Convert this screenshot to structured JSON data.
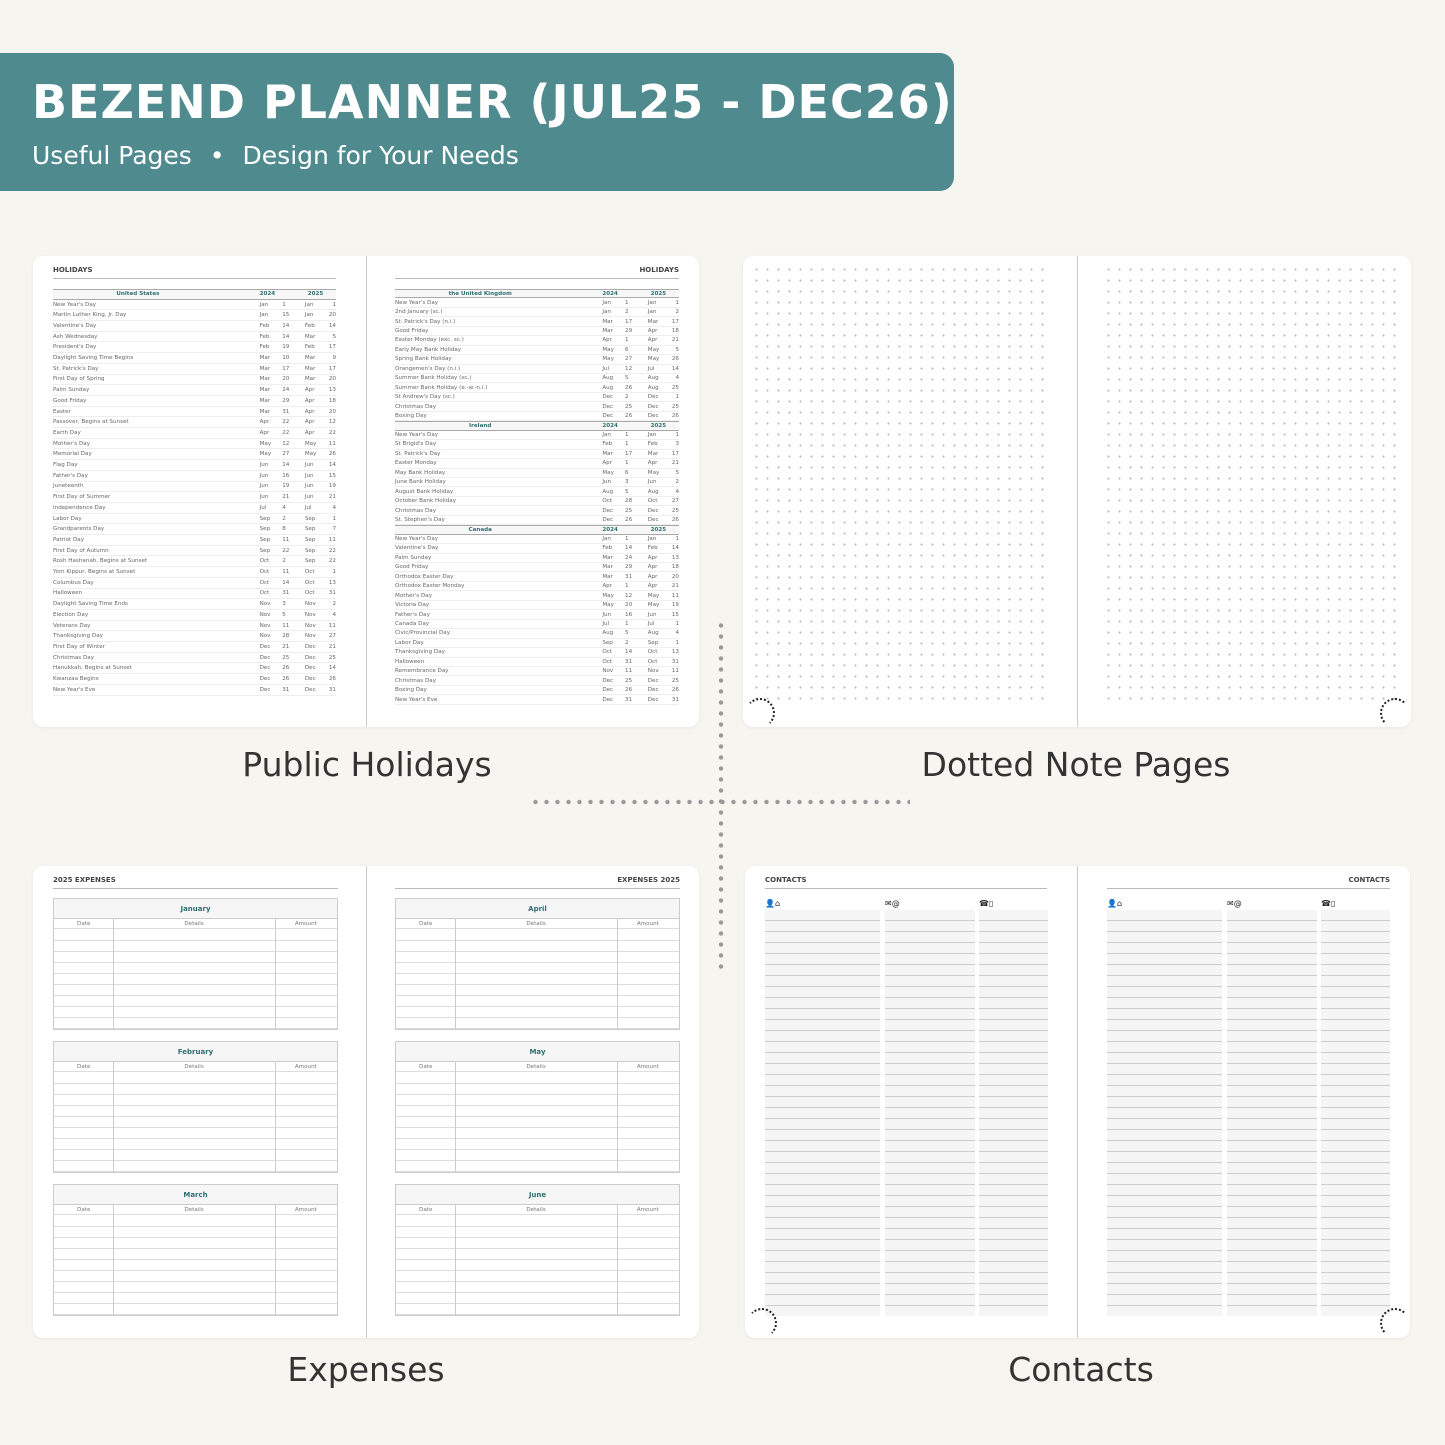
{
  "banner": {
    "title": "BEZEND PLANNER (JUL25 - DEC26)",
    "subtitle_left": "Useful Pages",
    "bullet": "•",
    "subtitle_right": "Design for Your Needs",
    "color": "#4f8a8e"
  },
  "captions": {
    "holidays": "Public Holidays",
    "dotted": "Dotted Note Pages",
    "expenses": "Expenses",
    "contacts": "Contacts"
  },
  "holidays": {
    "title": "HOLIDAYS",
    "years": [
      "2024",
      "2025"
    ],
    "left": [
      {
        "country": "United States",
        "rows": [
          [
            "New Year's Day",
            "Jan",
            "1",
            "Jan",
            "1"
          ],
          [
            "Martin Luther King, Jr. Day",
            "Jan",
            "15",
            "Jan",
            "20"
          ],
          [
            "Valentine's Day",
            "Feb",
            "14",
            "Feb",
            "14"
          ],
          [
            "Ash Wednesday",
            "Feb",
            "14",
            "Mar",
            "5"
          ],
          [
            "President's Day",
            "Feb",
            "19",
            "Feb",
            "17"
          ],
          [
            "Daylight Saving Time Begins",
            "Mar",
            "10",
            "Mar",
            "9"
          ],
          [
            "St. Patrick's Day",
            "Mar",
            "17",
            "Mar",
            "17"
          ],
          [
            "First Day of Spring",
            "Mar",
            "20",
            "Mar",
            "20"
          ],
          [
            "Palm Sunday",
            "Mar",
            "24",
            "Apr",
            "13"
          ],
          [
            "Good Friday",
            "Mar",
            "29",
            "Apr",
            "18"
          ],
          [
            "Easter",
            "Mar",
            "31",
            "Apr",
            "20"
          ],
          [
            "Passover, Begins at Sunset",
            "Apr",
            "22",
            "Apr",
            "12"
          ],
          [
            "Earth Day",
            "Apr",
            "22",
            "Apr",
            "22"
          ],
          [
            "Mother's Day",
            "May",
            "12",
            "May",
            "11"
          ],
          [
            "Memorial Day",
            "May",
            "27",
            "May",
            "26"
          ],
          [
            "Flag Day",
            "Jun",
            "14",
            "Jun",
            "14"
          ],
          [
            "Father's Day",
            "Jun",
            "16",
            "Jun",
            "15"
          ],
          [
            "Juneteenth",
            "Jun",
            "19",
            "Jun",
            "19"
          ],
          [
            "First Day of Summer",
            "Jun",
            "21",
            "Jun",
            "21"
          ],
          [
            "Independence Day",
            "Jul",
            "4",
            "Jul",
            "4"
          ],
          [
            "Labor Day",
            "Sep",
            "2",
            "Sep",
            "1"
          ],
          [
            "Grandparents Day",
            "Sep",
            "8",
            "Sep",
            "7"
          ],
          [
            "Patriot Day",
            "Sep",
            "11",
            "Sep",
            "11"
          ],
          [
            "First Day of Autumn",
            "Sep",
            "22",
            "Sep",
            "22"
          ],
          [
            "Rosh Hashanah, Begins at Sunset",
            "Oct",
            "2",
            "Sep",
            "22"
          ],
          [
            "Yom Kippur, Begins at Sunset",
            "Oct",
            "11",
            "Oct",
            "1"
          ],
          [
            "Columbus Day",
            "Oct",
            "14",
            "Oct",
            "13"
          ],
          [
            "Halloween",
            "Oct",
            "31",
            "Oct",
            "31"
          ],
          [
            "Daylight Saving Time Ends",
            "Nov",
            "3",
            "Nov",
            "2"
          ],
          [
            "Election Day",
            "Nov",
            "5",
            "Nov",
            "4"
          ],
          [
            "Veterans Day",
            "Nov",
            "11",
            "Nov",
            "11"
          ],
          [
            "Thanksgiving Day",
            "Nov",
            "28",
            "Nov",
            "27"
          ],
          [
            "First Day of Winter",
            "Dec",
            "21",
            "Dec",
            "21"
          ],
          [
            "Christmas Day",
            "Dec",
            "25",
            "Dec",
            "25"
          ],
          [
            "Hanukkah, Begins at Sunset",
            "Dec",
            "26",
            "Dec",
            "14"
          ],
          [
            "Kwanzaa Begins",
            "Dec",
            "26",
            "Dec",
            "26"
          ],
          [
            "New Year's Eve",
            "Dec",
            "31",
            "Dec",
            "31"
          ]
        ]
      }
    ],
    "right": [
      {
        "country": "the United Kingdom",
        "rows": [
          [
            "New Year's Day",
            "Jan",
            "1",
            "Jan",
            "1"
          ],
          [
            "2nd January (sc.)",
            "Jan",
            "2",
            "Jan",
            "2"
          ],
          [
            "St. Patrick's Day (n.i.)",
            "Mar",
            "17",
            "Mar",
            "17"
          ],
          [
            "Good Friday",
            "Mar",
            "29",
            "Apr",
            "18"
          ],
          [
            "Easter Monday (exc. sc.)",
            "Apr",
            "1",
            "Apr",
            "21"
          ],
          [
            "Early May Bank Holiday",
            "May",
            "6",
            "May",
            "5"
          ],
          [
            "Spring Bank Holiday",
            "May",
            "27",
            "May",
            "26"
          ],
          [
            "Orangemen's Day (n.i.)",
            "Jul",
            "12",
            "Jul",
            "14"
          ],
          [
            "Summer Bank Holiday (sc.)",
            "Aug",
            "5",
            "Aug",
            "4"
          ],
          [
            "Summer Bank Holiday (e.-w.-n.i.)",
            "Aug",
            "26",
            "Aug",
            "25"
          ],
          [
            "St Andrew's Day (sc.)",
            "Dec",
            "2",
            "Dec",
            "1"
          ],
          [
            "Christmas Day",
            "Dec",
            "25",
            "Dec",
            "25"
          ],
          [
            "Boxing Day",
            "Dec",
            "26",
            "Dec",
            "26"
          ]
        ]
      },
      {
        "country": "Ireland",
        "rows": [
          [
            "New Year's Day",
            "Jan",
            "1",
            "Jan",
            "1"
          ],
          [
            "St Brigid's Day",
            "Feb",
            "1",
            "Feb",
            "3"
          ],
          [
            "St. Patrick's Day",
            "Mar",
            "17",
            "Mar",
            "17"
          ],
          [
            "Easter Monday",
            "Apr",
            "1",
            "Apr",
            "21"
          ],
          [
            "May Bank Holiday",
            "May",
            "6",
            "May",
            "5"
          ],
          [
            "June Bank Holiday",
            "Jun",
            "3",
            "Jun",
            "2"
          ],
          [
            "August Bank Holiday",
            "Aug",
            "5",
            "Aug",
            "4"
          ],
          [
            "October Bank Holiday",
            "Oct",
            "28",
            "Oct",
            "27"
          ],
          [
            "Christmas Day",
            "Dec",
            "25",
            "Dec",
            "25"
          ],
          [
            "St. Stephen's Day",
            "Dec",
            "26",
            "Dec",
            "26"
          ]
        ]
      },
      {
        "country": "Canada",
        "rows": [
          [
            "New Year's Day",
            "Jan",
            "1",
            "Jan",
            "1"
          ],
          [
            "Valentine's Day",
            "Feb",
            "14",
            "Feb",
            "14"
          ],
          [
            "Palm Sunday",
            "Mar",
            "24",
            "Apr",
            "13"
          ],
          [
            "Good Friday",
            "Mar",
            "29",
            "Apr",
            "18"
          ],
          [
            "Orthodox Easter Day",
            "Mar",
            "31",
            "Apr",
            "20"
          ],
          [
            "Orthodox Easter Monday",
            "Apr",
            "1",
            "Apr",
            "21"
          ],
          [
            "Mother's Day",
            "May",
            "12",
            "May",
            "11"
          ],
          [
            "Victoria Day",
            "May",
            "20",
            "May",
            "19"
          ],
          [
            "Father's Day",
            "Jun",
            "16",
            "Jun",
            "15"
          ],
          [
            "Canada Day",
            "Jul",
            "1",
            "Jul",
            "1"
          ],
          [
            "Civic/Provincial Day",
            "Aug",
            "5",
            "Aug",
            "4"
          ],
          [
            "Labor Day",
            "Sep",
            "2",
            "Sep",
            "1"
          ],
          [
            "Thanksgiving Day",
            "Oct",
            "14",
            "Oct",
            "13"
          ],
          [
            "Halloween",
            "Oct",
            "31",
            "Oct",
            "31"
          ],
          [
            "Remembrance Day",
            "Nov",
            "11",
            "Nov",
            "11"
          ],
          [
            "Christmas Day",
            "Dec",
            "25",
            "Dec",
            "25"
          ],
          [
            "Boxing Day",
            "Dec",
            "26",
            "Dec",
            "26"
          ],
          [
            "New Year's Eve",
            "Dec",
            "31",
            "Dec",
            "31"
          ]
        ]
      }
    ]
  },
  "expenses": {
    "left_title": "2025 EXPENSES",
    "right_title": "EXPENSES 2025",
    "columns": [
      "Date",
      "Details",
      "Amount"
    ],
    "left_months": [
      "January",
      "February",
      "March"
    ],
    "right_months": [
      "April",
      "May",
      "June"
    ]
  },
  "contacts": {
    "title": "CONTACTS",
    "icons": [
      "person-home",
      "mail-at",
      "phone-mobile"
    ],
    "icon_glyphs": [
      "👤⌂",
      "✉@",
      "☎▯"
    ]
  }
}
